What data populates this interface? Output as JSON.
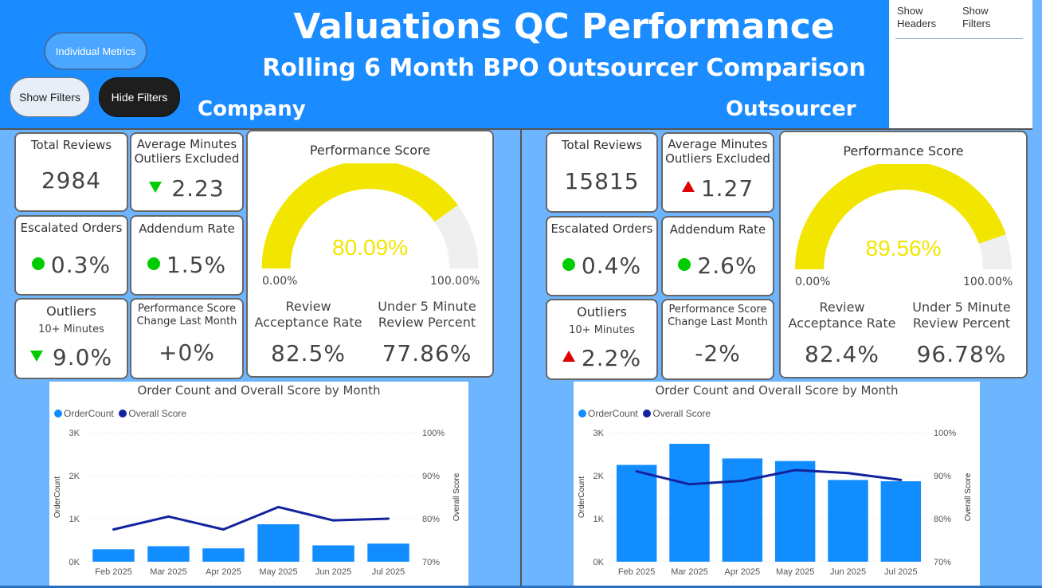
{
  "header": {
    "title": "Valuations QC Performance",
    "subtitle": "Rolling 6 Month BPO Outsourcer Comparison",
    "company_label": "Company",
    "outsourcer_label": "Outsourcer"
  },
  "buttons": {
    "individual_metrics": "Individual Metrics",
    "show_filters": "Show Filters",
    "hide_filters": "Hide Filters"
  },
  "toggles": {
    "show_headers": "Show Headers",
    "show_filters": "Show Filters"
  },
  "colors": {
    "header_blue": "#1a8cff",
    "bg_blue": "#6db6ff",
    "gauge_yellow": "#f2e600",
    "gauge_track": "#efefef",
    "bar_blue": "#118dff",
    "line_navy": "#12239e",
    "good_green": "#00cc00",
    "bad_red": "#dd0000"
  },
  "company": {
    "total_reviews_title": "Total Reviews",
    "total_reviews": "2984",
    "avg_minutes_title": "Average Minutes Outliers Excluded",
    "avg_minutes": "2.23",
    "avg_minutes_indicator": "down-green",
    "escalated_title": "Escalated Orders",
    "escalated": "0.3%",
    "addendum_title": "Addendum Rate",
    "addendum": "1.5%",
    "outliers_title": "Outliers",
    "outliers_sub": "10+ Minutes",
    "outliers": "9.0%",
    "outliers_indicator": "down-green",
    "perf_change_title": "Performance Score Change Last Month",
    "perf_change": "+0%",
    "gauge": {
      "title": "Performance Score",
      "value_text": "80.09%",
      "value": 0.8009,
      "min_label": "0.00%",
      "max_label": "100.00%"
    },
    "review_acceptance_title": "Review Acceptance Rate",
    "review_acceptance": "82.5%",
    "under5_title": "Under 5 Minute Review Percent",
    "under5": "77.86%"
  },
  "outsourcer": {
    "total_reviews_title": "Total Reviews",
    "total_reviews": "15815",
    "avg_minutes_title": "Average Minutes Outliers Excluded",
    "avg_minutes": "1.27",
    "avg_minutes_indicator": "up-red",
    "escalated_title": "Escalated Orders",
    "escalated": "0.4%",
    "addendum_title": "Addendum Rate",
    "addendum": "2.6%",
    "outliers_title": "Outliers",
    "outliers_sub": "10+ Minutes",
    "outliers": "2.2%",
    "outliers_indicator": "up-red",
    "perf_change_title": "Performance Score Change Last Month",
    "perf_change": "-2%",
    "gauge": {
      "title": "Performance Score",
      "value_text": "89.56%",
      "value": 0.8956,
      "min_label": "0.00%",
      "max_label": "100.00%"
    },
    "review_acceptance_title": "Review Acceptance Rate",
    "review_acceptance": "82.4%",
    "under5_title": "Under 5 Minute Review Percent",
    "under5": "96.78%"
  },
  "chart_data": [
    {
      "type": "bar",
      "title": "Order Count and Overall Score by Month",
      "legend": [
        "OrderCount",
        "Overall Score"
      ],
      "categories": [
        "Feb 2025",
        "Mar 2025",
        "Apr 2025",
        "May 2025",
        "Jun 2025",
        "Jul 2025"
      ],
      "series": [
        {
          "name": "OrderCount",
          "type": "bar",
          "axis": "left",
          "values": [
            290,
            360,
            310,
            870,
            380,
            420
          ]
        },
        {
          "name": "Overall Score",
          "type": "line",
          "axis": "right",
          "values": [
            77.5,
            80.5,
            77.5,
            82.7,
            79.6,
            80.0
          ]
        }
      ],
      "ylabel": "OrderCount",
      "y2label": "Overall Score",
      "ylim": [
        0,
        3000
      ],
      "y2lim": [
        70,
        100
      ],
      "yticks": [
        "0K",
        "1K",
        "2K",
        "3K"
      ],
      "y2ticks": [
        "70%",
        "80%",
        "90%",
        "100%"
      ],
      "grid": true,
      "legend_position": "top-left"
    },
    {
      "type": "bar",
      "title": "Order Count and Overall Score by Month",
      "legend": [
        "OrderCount",
        "Overall Score"
      ],
      "categories": [
        "Feb 2025",
        "Mar 2025",
        "Apr 2025",
        "May 2025",
        "Jun 2025",
        "Jul 2025"
      ],
      "series": [
        {
          "name": "OrderCount",
          "type": "bar",
          "axis": "left",
          "values": [
            2250,
            2740,
            2400,
            2340,
            1900,
            1870
          ]
        },
        {
          "name": "Overall Score",
          "type": "line",
          "axis": "right",
          "values": [
            91.0,
            88.0,
            88.8,
            91.3,
            90.6,
            89.0
          ]
        }
      ],
      "ylabel": "OrderCount",
      "y2label": "Overall Score",
      "ylim": [
        0,
        3000
      ],
      "y2lim": [
        70,
        100
      ],
      "yticks": [
        "0K",
        "1K",
        "2K",
        "3K"
      ],
      "y2ticks": [
        "70%",
        "80%",
        "90%",
        "100%"
      ],
      "grid": true,
      "legend_position": "top-left"
    }
  ]
}
